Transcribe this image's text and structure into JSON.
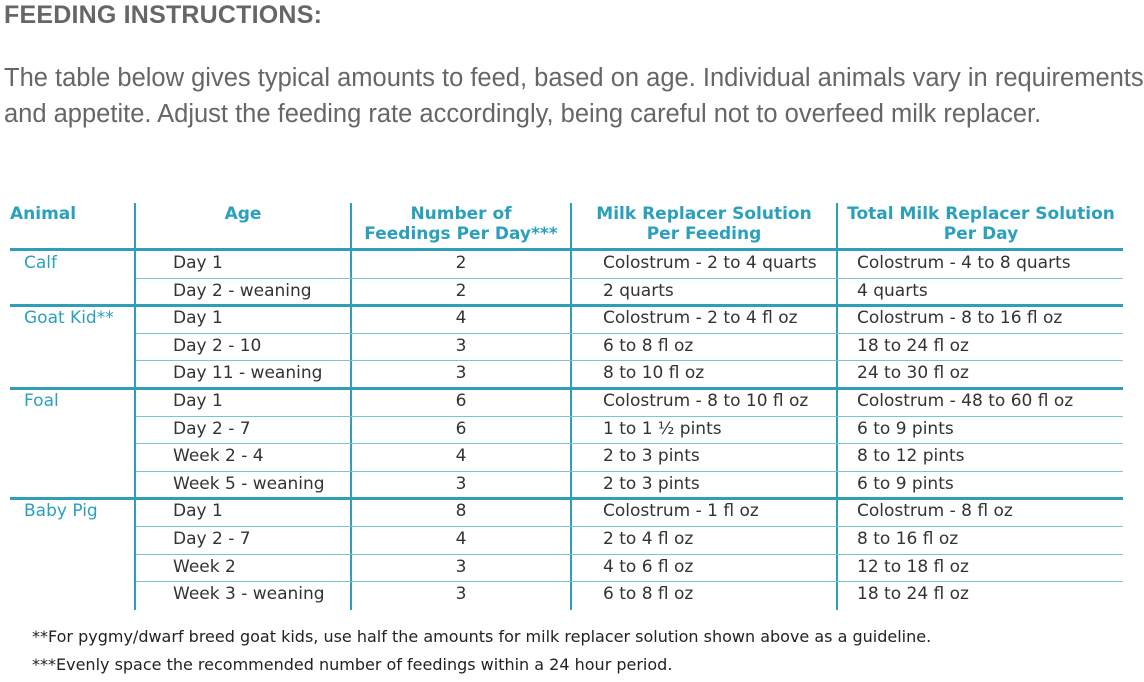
{
  "heading": "FEEDING INSTRUCTIONS:",
  "intro": "The table below gives typical amounts to feed, based on age. Individual animals vary in requirements and appetite. Adjust the feeding rate accordingly, being careful not to overfeed milk replacer.",
  "table": {
    "headers": {
      "animal": "Animal",
      "age": "Age",
      "feedings_line1": "Number of",
      "feedings_line2": "Feedings Per Day***",
      "solution_line1": "Milk Replacer Solution",
      "solution_line2": "Per Feeding",
      "total_line1": "Total Milk Replacer Solution",
      "total_line2": "Per Day"
    },
    "rows": [
      {
        "animal": "Calf",
        "age": "Day 1",
        "feedings": "2",
        "per_feeding": "Colostrum - 2 to 4 quarts",
        "per_day": "Colostrum - 4 to 8 quarts"
      },
      {
        "animal": "",
        "age": "Day 2 - weaning",
        "feedings": "2",
        "per_feeding": "2 quarts",
        "per_day": "4 quarts"
      },
      {
        "animal": "Goat Kid**",
        "age": "Day 1",
        "feedings": "4",
        "per_feeding": "Colostrum - 2 to 4 fl oz",
        "per_day": "Colostrum - 8 to 16 fl oz"
      },
      {
        "animal": "",
        "age": "Day 2 - 10",
        "feedings": "3",
        "per_feeding": "6 to 8 fl oz",
        "per_day": "18 to 24 fl oz"
      },
      {
        "animal": "",
        "age": "Day 11 - weaning",
        "feedings": "3",
        "per_feeding": "8 to 10 fl oz",
        "per_day": "24 to 30 fl oz"
      },
      {
        "animal": "Foal",
        "age": "Day 1",
        "feedings": "6",
        "per_feeding": "Colostrum - 8 to 10 fl oz",
        "per_day": "Colostrum - 48 to 60 fl oz"
      },
      {
        "animal": "",
        "age": "Day 2 - 7",
        "feedings": "6",
        "per_feeding": "1 to 1 ½ pints",
        "per_day": "6 to 9 pints"
      },
      {
        "animal": "",
        "age": "Week 2 - 4",
        "feedings": "4",
        "per_feeding": "2 to 3 pints",
        "per_day": "8 to 12 pints"
      },
      {
        "animal": "",
        "age": "Week 5 - weaning",
        "feedings": "3",
        "per_feeding": "2 to 3 pints",
        "per_day": "6 to 9 pints"
      },
      {
        "animal": "Baby Pig",
        "age": "Day 1",
        "feedings": "8",
        "per_feeding": "Colostrum - 1 fl oz",
        "per_day": "Colostrum - 8 fl oz"
      },
      {
        "animal": "",
        "age": "Day 2 - 7",
        "feedings": "4",
        "per_feeding": "2 to 4 fl oz",
        "per_day": "8 to 16 fl oz"
      },
      {
        "animal": "",
        "age": "Week 2",
        "feedings": "3",
        "per_feeding": "4 to 6 fl oz",
        "per_day": "12 to 18 fl oz"
      },
      {
        "animal": "",
        "age": "Week 3 - weaning",
        "feedings": "3",
        "per_feeding": "6 to 8 fl oz",
        "per_day": "18 to 24 fl oz"
      }
    ]
  },
  "footnotes": [
    "**For pygmy/dwarf breed goat kids, use half the amounts for milk replacer solution shown above as a guideline.",
    "***Evenly space the recommended number of feedings within a 24 hour period."
  ]
}
